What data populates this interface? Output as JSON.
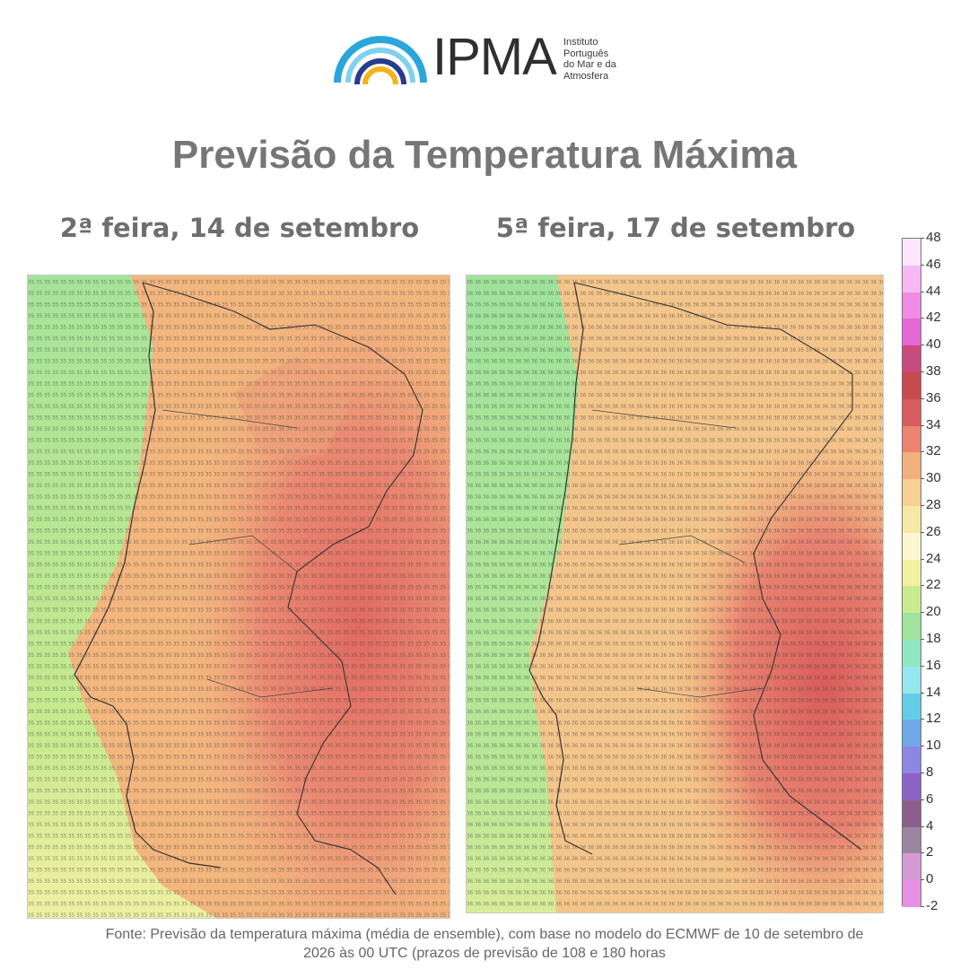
{
  "header": {
    "logo_text": "IPMA",
    "logo_subtitle_lines": [
      "Instituto",
      "Português",
      "do Mar e da",
      "Atmosfera"
    ]
  },
  "title": "Previsão da Temperatura Máxima",
  "maps": [
    {
      "title": "2ª feira, 14 de setembro"
    },
    {
      "title": "5ª feira, 17 de setembro"
    }
  ],
  "colorbar": {
    "labels": [
      "48",
      "46",
      "44",
      "42",
      "40",
      "38",
      "36",
      "34",
      "32",
      "30",
      "28",
      "26",
      "24",
      "22",
      "20",
      "18",
      "16",
      "14",
      "12",
      "10",
      "8",
      "6",
      "4",
      "2",
      "0",
      "-2"
    ],
    "colors": [
      "#fde6fb",
      "#f8b8f3",
      "#f08be7",
      "#e468d6",
      "#c74b7c",
      "#c9494e",
      "#d95d5c",
      "#e88470",
      "#f2b07c",
      "#f6cf93",
      "#f6e8a6",
      "#fbf7d0",
      "#f3f0a0",
      "#c9eb8f",
      "#9fe39c",
      "#8fe6c3",
      "#93e8ee",
      "#63cde8",
      "#6fa9e8",
      "#8d87e2",
      "#8c63c4",
      "#8a5f8b",
      "#9a86a0",
      "#d49ad6",
      "#e691e6"
    ]
  },
  "source_line1": "Fonte: Previsão da temperatura máxima (média de ensemble), com base no modelo do ECMWF de 10 de setembro de",
  "source_line2": "2026 às 00 UTC (prazos de previsão de 108 e 180 horas"
}
